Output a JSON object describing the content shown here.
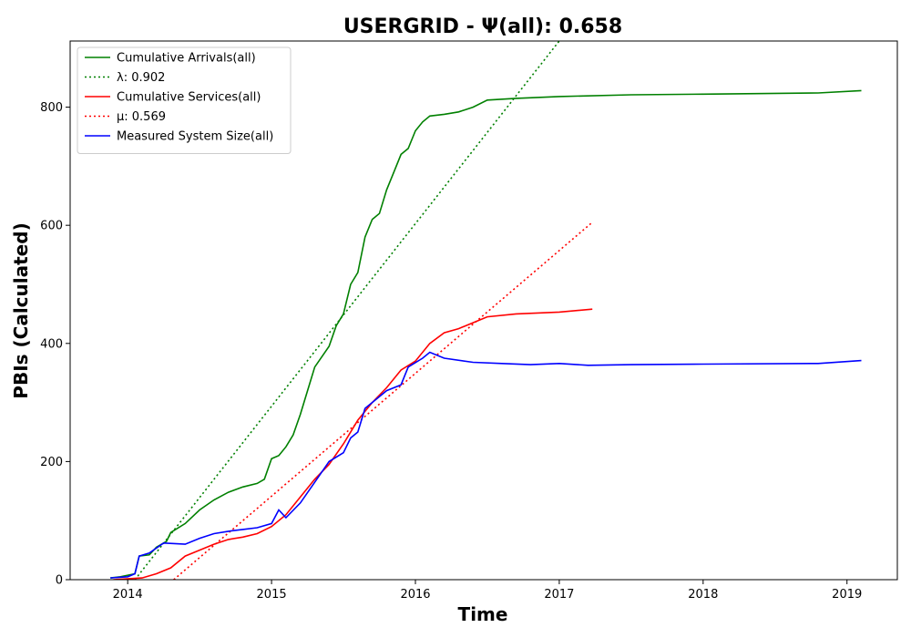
{
  "chart_data": {
    "type": "line",
    "title": "USERGRID -  Ψ(all): 0.658",
    "xlabel": "Time",
    "ylabel": "PBIs (Calculated)",
    "xlim": [
      2013.6,
      2019.35
    ],
    "ylim": [
      0,
      912
    ],
    "x_ticks": [
      2014,
      2015,
      2016,
      2017,
      2018,
      2019
    ],
    "x_tick_labels": [
      "2014",
      "2015",
      "2016",
      "2017",
      "2018",
      "2019"
    ],
    "y_ticks": [
      0,
      200,
      400,
      600,
      800
    ],
    "y_tick_labels": [
      "0",
      "200",
      "400",
      "600",
      "800"
    ],
    "grid": false,
    "legend_position": "upper-left",
    "series": [
      {
        "name": "Cumulative Arrivals(all)",
        "color": "#008000",
        "dash": "solid",
        "points": [
          [
            2013.88,
            3
          ],
          [
            2013.95,
            5
          ],
          [
            2014.05,
            10
          ],
          [
            2014.08,
            40
          ],
          [
            2014.15,
            42
          ],
          [
            2014.2,
            55
          ],
          [
            2014.27,
            65
          ],
          [
            2014.3,
            80
          ],
          [
            2014.4,
            95
          ],
          [
            2014.5,
            118
          ],
          [
            2014.6,
            135
          ],
          [
            2014.7,
            148
          ],
          [
            2014.8,
            157
          ],
          [
            2014.9,
            163
          ],
          [
            2014.95,
            170
          ],
          [
            2015.0,
            205
          ],
          [
            2015.05,
            210
          ],
          [
            2015.1,
            225
          ],
          [
            2015.15,
            245
          ],
          [
            2015.2,
            280
          ],
          [
            2015.25,
            320
          ],
          [
            2015.3,
            360
          ],
          [
            2015.4,
            395
          ],
          [
            2015.45,
            430
          ],
          [
            2015.5,
            450
          ],
          [
            2015.55,
            500
          ],
          [
            2015.6,
            520
          ],
          [
            2015.65,
            580
          ],
          [
            2015.7,
            610
          ],
          [
            2015.75,
            620
          ],
          [
            2015.8,
            660
          ],
          [
            2015.85,
            690
          ],
          [
            2015.9,
            720
          ],
          [
            2015.95,
            730
          ],
          [
            2016.0,
            760
          ],
          [
            2016.05,
            775
          ],
          [
            2016.1,
            785
          ],
          [
            2016.2,
            788
          ],
          [
            2016.3,
            792
          ],
          [
            2016.4,
            800
          ],
          [
            2016.5,
            812
          ],
          [
            2016.7,
            815
          ],
          [
            2017.0,
            818
          ],
          [
            2017.5,
            821
          ],
          [
            2018.0,
            822
          ],
          [
            2018.8,
            824
          ],
          [
            2019.1,
            828
          ]
        ]
      },
      {
        "name": "λ: 0.902",
        "color": "#008000",
        "dash": "dotted",
        "points": [
          [
            2014.05,
            0
          ],
          [
            2017.0,
            912
          ]
        ]
      },
      {
        "name": "Cumulative Services(all)",
        "color": "#ff0000",
        "dash": "solid",
        "points": [
          [
            2013.9,
            0
          ],
          [
            2014.1,
            3
          ],
          [
            2014.2,
            10
          ],
          [
            2014.3,
            20
          ],
          [
            2014.4,
            40
          ],
          [
            2014.5,
            50
          ],
          [
            2014.6,
            60
          ],
          [
            2014.7,
            68
          ],
          [
            2014.8,
            72
          ],
          [
            2014.9,
            78
          ],
          [
            2015.0,
            90
          ],
          [
            2015.1,
            110
          ],
          [
            2015.2,
            140
          ],
          [
            2015.3,
            170
          ],
          [
            2015.4,
            195
          ],
          [
            2015.5,
            230
          ],
          [
            2015.6,
            270
          ],
          [
            2015.7,
            300
          ],
          [
            2015.8,
            325
          ],
          [
            2015.9,
            355
          ],
          [
            2016.0,
            370
          ],
          [
            2016.1,
            400
          ],
          [
            2016.2,
            418
          ],
          [
            2016.3,
            425
          ],
          [
            2016.4,
            435
          ],
          [
            2016.5,
            445
          ],
          [
            2016.7,
            450
          ],
          [
            2017.0,
            453
          ],
          [
            2017.23,
            458
          ]
        ]
      },
      {
        "name": "μ: 0.569",
        "color": "#ff0000",
        "dash": "dotted",
        "points": [
          [
            2014.32,
            0
          ],
          [
            2017.23,
            605
          ]
        ]
      },
      {
        "name": "Measured System Size(all)",
        "color": "#0000ff",
        "dash": "solid",
        "points": [
          [
            2013.88,
            3
          ],
          [
            2014.0,
            5
          ],
          [
            2014.05,
            10
          ],
          [
            2014.08,
            40
          ],
          [
            2014.15,
            45
          ],
          [
            2014.25,
            62
          ],
          [
            2014.4,
            60
          ],
          [
            2014.5,
            70
          ],
          [
            2014.6,
            78
          ],
          [
            2014.7,
            82
          ],
          [
            2014.8,
            85
          ],
          [
            2014.9,
            88
          ],
          [
            2015.0,
            95
          ],
          [
            2015.05,
            118
          ],
          [
            2015.1,
            105
          ],
          [
            2015.2,
            130
          ],
          [
            2015.3,
            165
          ],
          [
            2015.4,
            200
          ],
          [
            2015.5,
            215
          ],
          [
            2015.55,
            240
          ],
          [
            2015.6,
            250
          ],
          [
            2015.65,
            290
          ],
          [
            2015.7,
            300
          ],
          [
            2015.8,
            320
          ],
          [
            2015.9,
            330
          ],
          [
            2015.95,
            360
          ],
          [
            2016.05,
            375
          ],
          [
            2016.1,
            385
          ],
          [
            2016.2,
            375
          ],
          [
            2016.4,
            368
          ],
          [
            2016.6,
            366
          ],
          [
            2016.8,
            364
          ],
          [
            2017.0,
            366
          ],
          [
            2017.2,
            363
          ],
          [
            2017.5,
            364
          ],
          [
            2018.0,
            365
          ],
          [
            2018.8,
            366
          ],
          [
            2019.1,
            371
          ]
        ]
      }
    ]
  }
}
